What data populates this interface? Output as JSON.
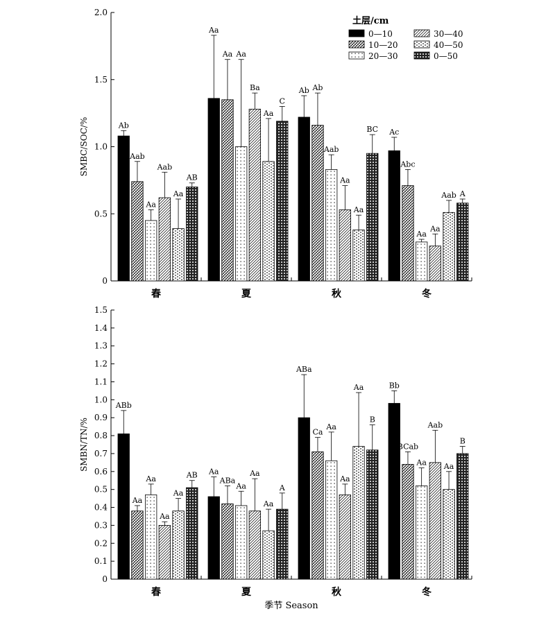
{
  "legend": {
    "title": "土层/cm",
    "items": [
      "0—10",
      "10—20",
      "20—30",
      "30—40",
      "40—50",
      "0—50"
    ]
  },
  "chart_data": [
    {
      "type": "bar",
      "ylabel": "SMBC/SOC/%",
      "xlabel": "",
      "ylim": [
        0,
        2.0
      ],
      "yticks": [
        "0",
        "0.5",
        "1.0",
        "1.5",
        "2.0"
      ],
      "categories": [
        "春",
        "夏",
        "秋",
        "冬"
      ],
      "legend_position": "top-right",
      "series": [
        {
          "name": "0—10",
          "values": [
            1.08,
            1.36,
            1.22,
            0.97
          ],
          "errors": [
            0.04,
            0.47,
            0.16,
            0.1
          ],
          "labels": [
            "Ab",
            "Aa",
            "Ab",
            "Ac"
          ]
        },
        {
          "name": "10—20",
          "values": [
            0.74,
            1.35,
            1.16,
            0.71
          ],
          "errors": [
            0.15,
            0.3,
            0.24,
            0.12
          ],
          "labels": [
            "Aab",
            "Aa",
            "Ab",
            "Abc"
          ]
        },
        {
          "name": "20—30",
          "values": [
            0.45,
            1.0,
            0.83,
            0.29
          ],
          "errors": [
            0.08,
            0.65,
            0.11,
            0.02
          ],
          "labels": [
            "Aa",
            "Aa",
            "Aab",
            "Aa"
          ]
        },
        {
          "name": "30—40",
          "values": [
            0.62,
            1.28,
            0.53,
            0.26
          ],
          "errors": [
            0.19,
            0.12,
            0.18,
            0.09
          ],
          "labels": [
            "Aab",
            "Ba",
            "Aa",
            "Aa"
          ]
        },
        {
          "name": "40—50",
          "values": [
            0.39,
            0.89,
            0.38,
            0.51
          ],
          "errors": [
            0.22,
            0.32,
            0.11,
            0.09
          ],
          "labels": [
            "Aa",
            "Aa",
            "Aa",
            "Aab"
          ]
        },
        {
          "name": "0—50",
          "values": [
            0.7,
            1.19,
            0.95,
            0.58
          ],
          "errors": [
            0.03,
            0.11,
            0.14,
            0.03
          ],
          "labels": [
            "AB",
            "C",
            "BC",
            "A"
          ]
        }
      ]
    },
    {
      "type": "bar",
      "ylabel": "SMBN/TN/%",
      "xlabel": "季节 Season",
      "ylim": [
        0,
        1.5
      ],
      "yticks": [
        "0",
        "0.1",
        "0.2",
        "0.3",
        "0.4",
        "0.5",
        "0.6",
        "0.7",
        "0.8",
        "0.9",
        "1.0",
        "1.1",
        "1.2",
        "1.3",
        "1.4",
        "1.5"
      ],
      "categories": [
        "春",
        "夏",
        "秋",
        "冬"
      ],
      "series": [
        {
          "name": "0—10",
          "values": [
            0.81,
            0.46,
            0.9,
            0.98
          ],
          "errors": [
            0.13,
            0.11,
            0.24,
            0.07
          ],
          "labels": [
            "ABb",
            "Aa",
            "ABa",
            "Bb"
          ]
        },
        {
          "name": "10—20",
          "values": [
            0.38,
            0.42,
            0.71,
            0.64
          ],
          "errors": [
            0.03,
            0.1,
            0.08,
            0.07
          ],
          "labels": [
            "Aa",
            "ABa",
            "Ca",
            "BCab"
          ]
        },
        {
          "name": "20—30",
          "values": [
            0.47,
            0.41,
            0.66,
            0.52
          ],
          "errors": [
            0.06,
            0.08,
            0.16,
            0.1
          ],
          "labels": [
            "Aa",
            "Aa",
            "Aa",
            "Aa"
          ]
        },
        {
          "name": "30—40",
          "values": [
            0.3,
            0.38,
            0.47,
            0.65
          ],
          "errors": [
            0.02,
            0.18,
            0.06,
            0.18
          ],
          "labels": [
            "Aa",
            "Aa",
            "Aa",
            "Aab"
          ]
        },
        {
          "name": "40—50",
          "values": [
            0.38,
            0.27,
            0.74,
            0.5
          ],
          "errors": [
            0.07,
            0.12,
            0.3,
            0.1
          ],
          "labels": [
            "Aa",
            "Aa",
            "Aa",
            "Aa"
          ]
        },
        {
          "name": "0—50",
          "values": [
            0.51,
            0.39,
            0.72,
            0.7
          ],
          "errors": [
            0.04,
            0.09,
            0.14,
            0.04
          ],
          "labels": [
            "AB",
            "A",
            "B",
            "B"
          ]
        }
      ]
    }
  ]
}
